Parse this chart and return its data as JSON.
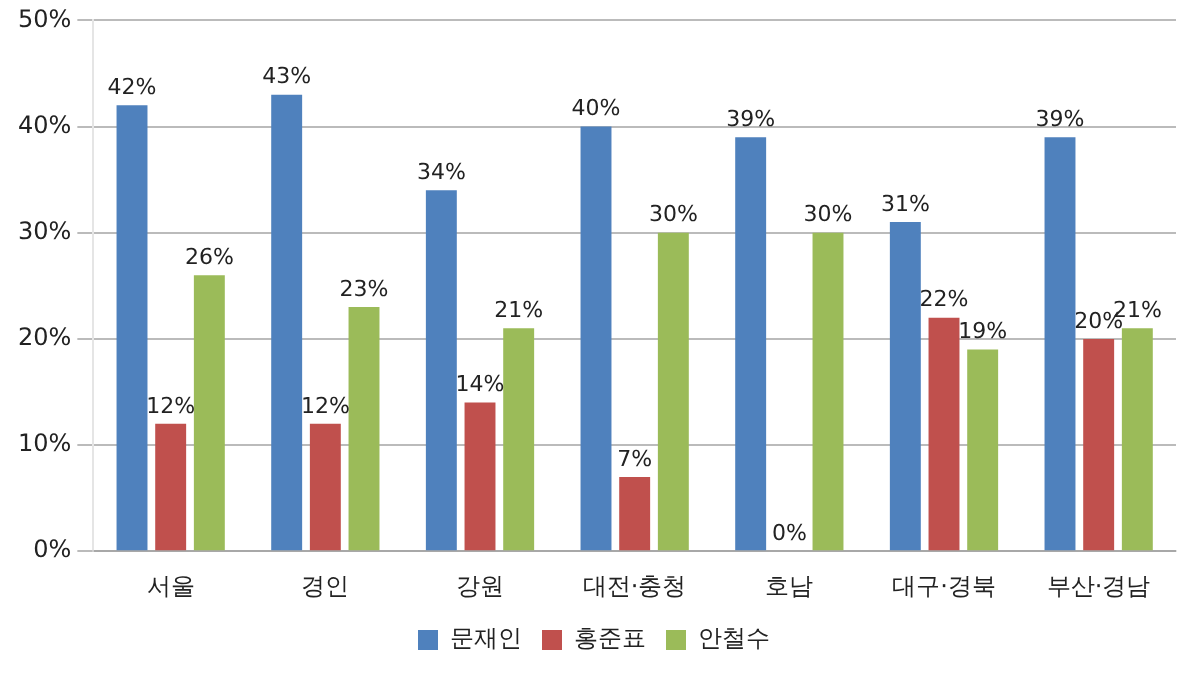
{
  "chart_data": {
    "type": "bar",
    "categories": [
      "서울",
      "경인",
      "강원",
      "대전·충청",
      "호남",
      "대구·경북",
      "부산·경남"
    ],
    "series": [
      {
        "name": "문재인",
        "color": "#4f81bd",
        "values": [
          42,
          43,
          34,
          40,
          39,
          31,
          39
        ],
        "value_labels": [
          "42%",
          "43%",
          "34%",
          "40%",
          "39%",
          "31%",
          "39%"
        ]
      },
      {
        "name": "홍준표",
        "color": "#c0504d",
        "values": [
          12,
          12,
          14,
          7,
          0,
          22,
          20
        ],
        "value_labels": [
          "12%",
          "12%",
          "14%",
          "7%",
          "0%",
          "22%",
          "20%"
        ]
      },
      {
        "name": "안철수",
        "color": "#9bbb59",
        "values": [
          26,
          23,
          21,
          30,
          30,
          19,
          21
        ],
        "value_labels": [
          "26%",
          "23%",
          "21%",
          "30%",
          "30%",
          "19%",
          "21%"
        ]
      }
    ],
    "ylim": [
      0,
      50
    ],
    "yticks": [
      {
        "value": 0,
        "label": "0%"
      },
      {
        "value": 10,
        "label": "10%"
      },
      {
        "value": 20,
        "label": "20%"
      },
      {
        "value": 30,
        "label": "30%"
      },
      {
        "value": 40,
        "label": "40%"
      },
      {
        "value": 50,
        "label": "50%"
      }
    ],
    "grid": "y",
    "legend": "bottom"
  }
}
